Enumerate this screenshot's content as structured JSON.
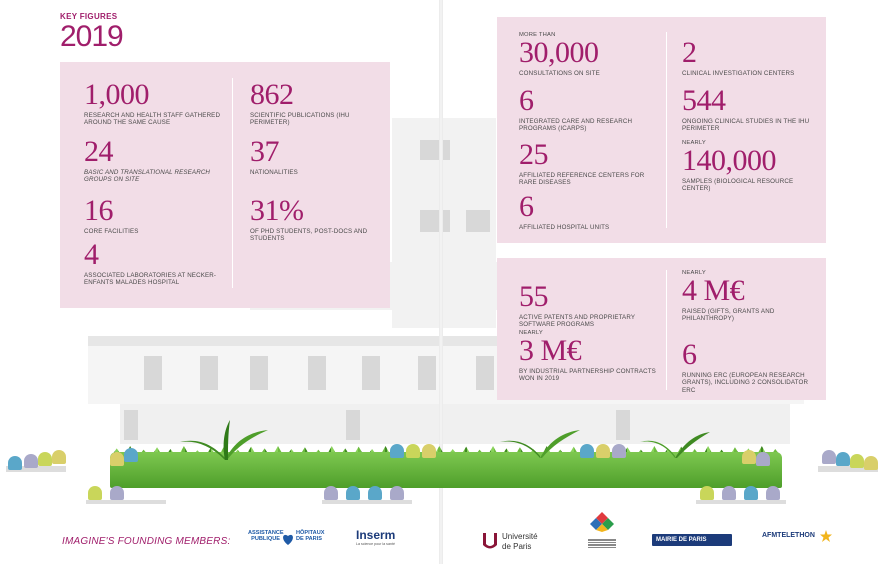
{
  "header": {
    "kicker": "KEY FIGURES",
    "year": "2019"
  },
  "left_panel": {
    "col1": [
      {
        "value": "1,000",
        "label": "RESEARCH AND HEALTH STAFF GATHERED AROUND THE SAME CAUSE"
      },
      {
        "value": "24",
        "label": "BASIC AND TRANSLATIONAL RESEARCH GROUPS ON SITE"
      },
      {
        "value": "16",
        "label": "CORE FACILITIES"
      },
      {
        "value": "4",
        "label": "ASSOCIATED LABORATORIES AT NECKER-ENFANTS MALADES HOSPITAL"
      }
    ],
    "col2": [
      {
        "value": "862",
        "label": "SCIENTIFIC PUBLICATIONS (IHU PERIMETER)"
      },
      {
        "value": "37",
        "label": "NATIONALITIES"
      },
      {
        "value": "31%",
        "label": "OF PHD STUDENTS, POST-DOCS AND STUDENTS"
      }
    ]
  },
  "right_top": {
    "col1": [
      {
        "prefix": "MORE THAN",
        "value": "30,000",
        "label": "CONSULTATIONS ON SITE"
      },
      {
        "value": "6",
        "label": "INTEGRATED CARE AND RESEARCH PROGRAMS (ICARPS)"
      },
      {
        "value": "25",
        "label": "AFFILIATED REFERENCE CENTERS FOR RARE DISEASES"
      },
      {
        "value": "6",
        "label": "AFFILIATED HOSPITAL UNITS"
      }
    ],
    "col2": [
      {
        "value": "2",
        "label": "CLINICAL INVESTIGATION CENTERS"
      },
      {
        "value": "544",
        "label": "ONGOING CLINICAL STUDIES IN THE IHU PERIMETER"
      },
      {
        "prefix": "NEARLY",
        "value": "140,000",
        "label": "SAMPLES (BIOLOGICAL RESOURCE CENTER)"
      }
    ]
  },
  "right_bottom": {
    "col1": [
      {
        "value": "55",
        "label": "ACTIVE PATENTS AND PROPRIETARY SOFTWARE PROGRAMS"
      },
      {
        "prefix": "NEARLY",
        "value": "3 M€",
        "label": "BY INDUSTRIAL PARTNERSHIP CONTRACTS WON IN 2019"
      }
    ],
    "col2": [
      {
        "prefix": "NEARLY",
        "value": "4 M€",
        "label": "RAISED (GIFTS, GRANTS AND PHILANTHROPY)"
      },
      {
        "value": "6",
        "label": "RUNNING ERC (EUROPEAN RESEARCH GRANTS), INCLUDING 2 CONSOLIDATOR ERC"
      }
    ]
  },
  "footer": {
    "label": "IMAGINE'S FOUNDING MEMBERS:",
    "logos": {
      "aphp_line1": "ASSISTANCE",
      "aphp_line2": "PUBLIQUE",
      "aphp_line3": "HÔPITAUX",
      "aphp_line4": "DE PARIS",
      "inserm": "Inserm",
      "inserm_sub": "La science pour la santé",
      "univ_line1": "Université",
      "univ_line2": "de Paris",
      "mairie": "MAIRIE DE PARIS",
      "afm": "AFMTELETHON"
    }
  },
  "colors": {
    "accent": "#a01e6b",
    "panel": "#f2dde7",
    "grass": "#5aa832"
  }
}
